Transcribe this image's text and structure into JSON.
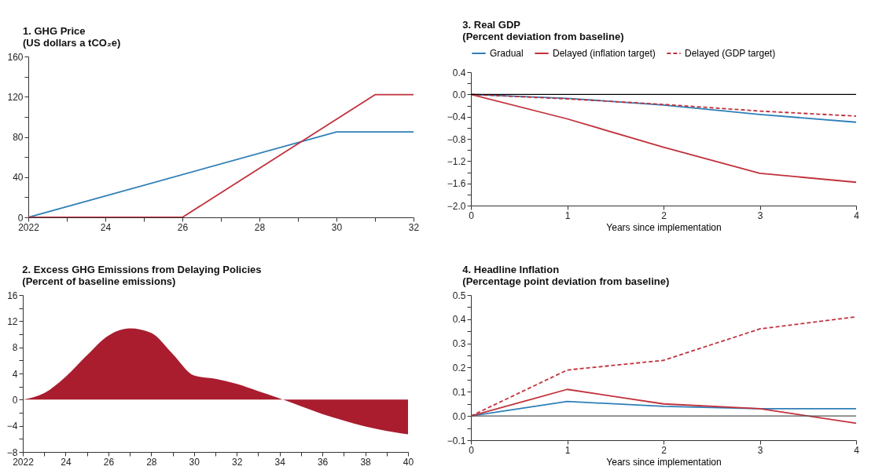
{
  "chart_data": [
    {
      "type": "line",
      "title": "1. GHG Price",
      "subtitle": "(US dollars a tCO₂e)",
      "x": [
        2022,
        2030,
        2032
      ],
      "series": [
        {
          "color": "#2e7fb8",
          "values": [
            0,
            85,
            85
          ]
        },
        {
          "color": "#c1313c",
          "x": [
            2022,
            2026,
            2031,
            2032
          ],
          "values": [
            0,
            0,
            122,
            122
          ]
        }
      ],
      "xlim": [
        2022,
        2032
      ],
      "xticks": [
        2022,
        {
          "value": 2023,
          "label": null
        },
        {
          "value": 2024,
          "label": "24"
        },
        {
          "value": 2025,
          "label": null
        },
        {
          "value": 2026,
          "label": "26"
        },
        {
          "value": 2027,
          "label": null
        },
        {
          "value": 2028,
          "label": "28"
        },
        {
          "value": 2029,
          "label": null
        },
        {
          "value": 2030,
          "label": "30"
        },
        {
          "value": 2031,
          "label": null
        },
        {
          "value": 2032,
          "label": "32"
        }
      ],
      "ylim": [
        0,
        160
      ],
      "yticks": [
        0,
        {
          "value": 20,
          "label": null
        },
        40,
        {
          "value": 60,
          "label": null
        },
        80,
        {
          "value": 100,
          "label": null
        },
        120,
        {
          "value": 140,
          "label": null
        },
        160
      ]
    },
    {
      "type": "area",
      "title": "2. Excess GHG Emissions from Delaying Policies",
      "subtitle": "(Percent of baseline emissions)",
      "x": [
        2022,
        2023,
        2024,
        2025,
        2026,
        2027,
        2028,
        2029,
        2030,
        2031,
        2032,
        2033,
        2034,
        2035,
        2036,
        2037,
        2038,
        2039,
        2040
      ],
      "series": [
        {
          "color": "#a91d2e",
          "values": [
            0,
            1,
            3.5,
            6.8,
            9.8,
            10.9,
            10.2,
            7,
            3.7,
            3.2,
            2.4,
            1.3,
            0.2,
            -1,
            -2.2,
            -3.2,
            -4.1,
            -4.8,
            -5.3
          ]
        }
      ],
      "xlim": [
        2022,
        2040
      ],
      "xticks": [
        2022,
        {
          "value": 2023,
          "label": null
        },
        {
          "value": 2024,
          "label": "24"
        },
        {
          "value": 2025,
          "label": null
        },
        {
          "value": 2026,
          "label": "26"
        },
        {
          "value": 2027,
          "label": null
        },
        {
          "value": 2028,
          "label": "28"
        },
        {
          "value": 2029,
          "label": null
        },
        {
          "value": 2030,
          "label": "30"
        },
        {
          "value": 2031,
          "label": null
        },
        {
          "value": 2032,
          "label": "32"
        },
        {
          "value": 2033,
          "label": null
        },
        {
          "value": 2034,
          "label": "34"
        },
        {
          "value": 2035,
          "label": null
        },
        {
          "value": 2036,
          "label": "36"
        },
        {
          "value": 2037,
          "label": null
        },
        {
          "value": 2038,
          "label": "38"
        },
        {
          "value": 2039,
          "label": null
        },
        {
          "value": 2040,
          "label": "40"
        }
      ],
      "ylim": [
        -8,
        16
      ],
      "yticks": [
        {
          "value": -8,
          "label": "−8"
        },
        {
          "value": -6,
          "label": null
        },
        {
          "value": -4,
          "label": "−4"
        },
        {
          "value": -2,
          "label": null
        },
        0,
        {
          "value": 2,
          "label": null
        },
        4,
        {
          "value": 6,
          "label": null
        },
        8,
        {
          "value": 10,
          "label": null
        },
        12,
        {
          "value": 14,
          "label": null
        },
        16
      ]
    },
    {
      "type": "line",
      "title": "3. Real GDP",
      "subtitle": "(Percent deviation from baseline)",
      "xlabel": "Years since implementation",
      "legend": "top",
      "x": [
        0,
        1,
        2,
        3,
        4
      ],
      "series": [
        {
          "name": "Gradual",
          "color": "#2e7fb8",
          "values": [
            0,
            -0.07,
            -0.19,
            -0.36,
            -0.5
          ]
        },
        {
          "name": "Delayed (inflation target)",
          "color": "#c1313c",
          "values": [
            0,
            -0.44,
            -0.95,
            -1.42,
            -1.58
          ]
        },
        {
          "name": "Delayed (GDP target)",
          "color": "#c1313c",
          "line_style": "dashed",
          "values": [
            0,
            -0.08,
            -0.18,
            -0.3,
            -0.39
          ]
        }
      ],
      "xlim": [
        0,
        4
      ],
      "xticks": [
        0,
        1,
        2,
        3,
        4
      ],
      "ylim": [
        -2,
        0.4
      ],
      "yticks": [
        {
          "value": -2,
          "label": "−2.0"
        },
        {
          "value": -1.8,
          "label": null
        },
        {
          "value": -1.6,
          "label": "−1.6"
        },
        {
          "value": -1.4,
          "label": null
        },
        {
          "value": -1.2,
          "label": "−1.2"
        },
        {
          "value": -1,
          "label": null
        },
        {
          "value": -0.8,
          "label": "−0.8"
        },
        {
          "value": -0.6,
          "label": null
        },
        {
          "value": -0.4,
          "label": "−0.4"
        },
        {
          "value": -0.2,
          "label": null
        },
        {
          "value": 0,
          "label": "0.0"
        },
        {
          "value": 0.2,
          "label": null
        },
        0.4
      ],
      "ref_lines": [
        {
          "axis": "y",
          "value": 0,
          "color": "#000000"
        }
      ]
    },
    {
      "type": "line",
      "title": "4. Headline Inflation",
      "subtitle": "(Percentage point deviation from baseline)",
      "xlabel": "Years since implementation",
      "x": [
        0,
        1,
        2,
        3,
        4
      ],
      "series": [
        {
          "color": "#2e7fb8",
          "values": [
            0,
            0.06,
            0.04,
            0.03,
            0.03
          ]
        },
        {
          "color": "#c1313c",
          "values": [
            0,
            0.11,
            0.05,
            0.03,
            -0.03
          ]
        },
        {
          "color": "#c1313c",
          "line_style": "dashed",
          "values": [
            0,
            0.19,
            0.23,
            0.36,
            0.41
          ]
        }
      ],
      "xlim": [
        0,
        4
      ],
      "xticks": [
        0,
        1,
        2,
        3,
        4
      ],
      "ylim": [
        -0.1,
        0.5
      ],
      "yticks": [
        {
          "value": -0.1,
          "label": "−0.1"
        },
        {
          "value": -0.05,
          "label": null
        },
        {
          "value": 0,
          "label": "0.0"
        },
        {
          "value": 0.05,
          "label": null
        },
        0.1,
        {
          "value": 0.15,
          "label": null
        },
        0.2,
        {
          "value": 0.25,
          "label": null
        },
        0.3,
        {
          "value": 0.35,
          "label": null
        },
        0.4,
        {
          "value": 0.45,
          "label": null
        },
        0.5
      ],
      "ref_lines": [
        {
          "axis": "y",
          "value": 0,
          "color": "#555555"
        }
      ]
    }
  ]
}
